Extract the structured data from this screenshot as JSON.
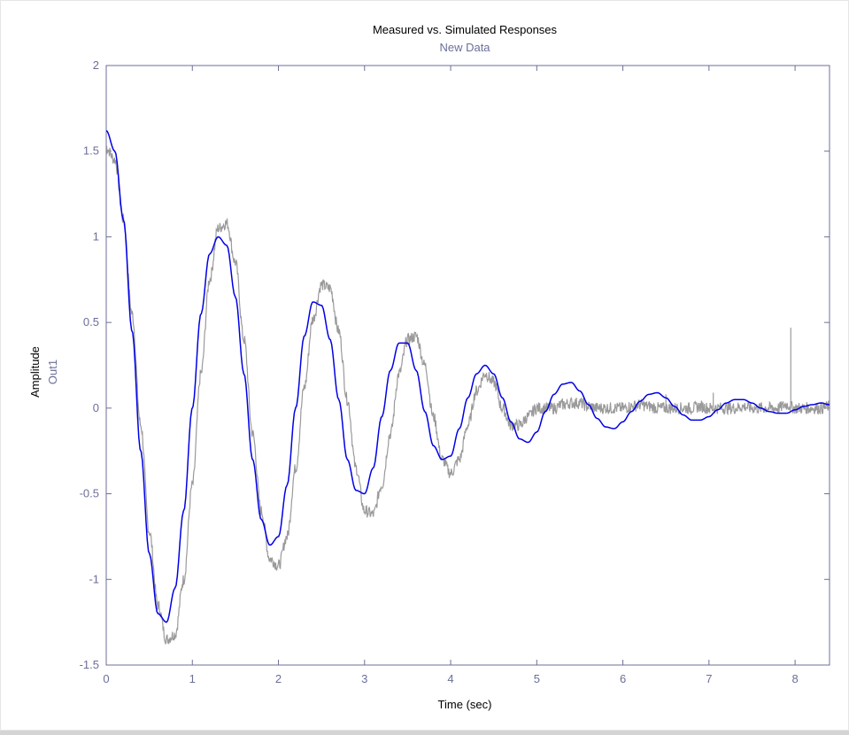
{
  "chart_data": {
    "type": "line",
    "title": "Measured vs. Simulated Responses",
    "subtitle": "New Data",
    "xlabel": "Time (sec)",
    "ylabel": "Amplitude",
    "ylabel_sub": "Out1",
    "xlim": [
      0,
      8.4
    ],
    "ylim": [
      -1.5,
      2
    ],
    "xticks": [
      0,
      1,
      2,
      3,
      4,
      5,
      6,
      7,
      8
    ],
    "xtick_labels": [
      "0",
      "1",
      "2",
      "3",
      "4",
      "5",
      "6",
      "7",
      "8"
    ],
    "yticks": [
      -1.5,
      -1,
      -0.5,
      0,
      0.5,
      1,
      1.5,
      2
    ],
    "ytick_labels": [
      "-1.5",
      "-1",
      "-0.5",
      "0",
      "0.5",
      "1",
      "1.5",
      "2"
    ],
    "grid": false,
    "colors": {
      "measured": "#9a9a9a",
      "simulated": "#0000e6",
      "axis": "#6b6f99",
      "title": "#000000",
      "subtitle": "#6b6f99"
    },
    "series": [
      {
        "values_x": [
          0,
          0.1,
          0.2,
          0.3,
          0.4,
          0.5,
          0.6,
          0.7,
          0.8,
          0.9,
          1.0,
          1.1,
          1.2,
          1.3,
          1.4,
          1.5,
          1.6,
          1.7,
          1.8,
          1.9,
          2.0,
          2.1,
          2.2,
          2.3,
          2.4,
          2.5,
          2.6,
          2.7,
          2.8,
          2.9,
          3.0,
          3.1,
          3.2,
          3.3,
          3.4,
          3.5,
          3.6,
          3.7,
          3.8,
          3.9,
          4.0,
          4.1,
          4.2,
          4.3,
          4.4,
          4.5,
          4.6,
          4.7,
          4.8,
          4.9,
          5.0,
          5.1,
          5.2,
          5.3,
          5.4,
          5.5,
          5.6,
          5.7,
          5.8,
          5.9,
          6.0,
          6.1,
          6.2,
          6.3,
          6.4,
          6.5,
          6.6,
          6.7,
          6.8,
          6.9,
          7.0,
          7.1,
          7.2,
          7.3,
          7.4,
          7.5,
          7.6,
          7.7,
          7.8,
          7.9,
          8.0,
          8.1,
          8.2,
          8.3,
          8.4
        ],
        "values": [
          1.52,
          1.45,
          1.1,
          0.55,
          -0.1,
          -0.72,
          -1.15,
          -1.35,
          -1.32,
          -1.0,
          -0.45,
          0.2,
          0.75,
          1.05,
          1.08,
          0.85,
          0.4,
          -0.15,
          -0.6,
          -0.88,
          -0.92,
          -0.75,
          -0.35,
          0.12,
          0.52,
          0.72,
          0.7,
          0.45,
          0.05,
          -0.35,
          -0.6,
          -0.62,
          -0.45,
          -0.15,
          0.2,
          0.4,
          0.42,
          0.25,
          -0.05,
          -0.3,
          -0.38,
          -0.3,
          -0.1,
          0.1,
          0.2,
          0.15,
          0.0,
          -0.1,
          -0.1,
          -0.05,
          0.0,
          0.0,
          0.0,
          0.02,
          0.03,
          0.03,
          0.01,
          0.0,
          0.0,
          0.0,
          0.0,
          0.01,
          0.02,
          0.01,
          0.0,
          0.0,
          0.0,
          0.0,
          0.0,
          0.01,
          0.0,
          0.0,
          0.0,
          0.0,
          0.01,
          0.0,
          0.0,
          0.0,
          0.0,
          0.02,
          0.0,
          0.0,
          0.0,
          0.0,
          0.01
        ]
      },
      {
        "values_x": [
          0,
          0.1,
          0.2,
          0.3,
          0.4,
          0.5,
          0.6,
          0.7,
          0.8,
          0.9,
          1.0,
          1.1,
          1.2,
          1.3,
          1.4,
          1.5,
          1.6,
          1.7,
          1.8,
          1.9,
          2.0,
          2.1,
          2.2,
          2.3,
          2.4,
          2.5,
          2.6,
          2.7,
          2.8,
          2.9,
          3.0,
          3.1,
          3.2,
          3.3,
          3.4,
          3.5,
          3.6,
          3.7,
          3.8,
          3.9,
          4.0,
          4.1,
          4.2,
          4.3,
          4.4,
          4.5,
          4.6,
          4.7,
          4.8,
          4.9,
          5.0,
          5.1,
          5.2,
          5.3,
          5.4,
          5.5,
          5.6,
          5.7,
          5.8,
          5.9,
          6.0,
          6.1,
          6.2,
          6.3,
          6.4,
          6.5,
          6.6,
          6.7,
          6.8,
          6.9,
          7.0,
          7.1,
          7.2,
          7.3,
          7.4,
          7.5,
          7.6,
          7.7,
          7.8,
          7.9,
          8.0,
          8.1,
          8.2,
          8.3,
          8.4
        ],
        "values": [
          1.62,
          1.5,
          1.1,
          0.45,
          -0.25,
          -0.85,
          -1.2,
          -1.25,
          -1.05,
          -0.6,
          0.0,
          0.55,
          0.9,
          1.0,
          0.95,
          0.65,
          0.2,
          -0.3,
          -0.65,
          -0.8,
          -0.75,
          -0.45,
          0.0,
          0.42,
          0.62,
          0.6,
          0.4,
          0.05,
          -0.3,
          -0.48,
          -0.5,
          -0.35,
          -0.05,
          0.22,
          0.38,
          0.38,
          0.22,
          -0.02,
          -0.22,
          -0.3,
          -0.28,
          -0.12,
          0.06,
          0.2,
          0.25,
          0.2,
          0.06,
          -0.08,
          -0.18,
          -0.2,
          -0.14,
          -0.02,
          0.08,
          0.14,
          0.15,
          0.1,
          0.02,
          -0.06,
          -0.11,
          -0.12,
          -0.08,
          -0.02,
          0.04,
          0.08,
          0.09,
          0.06,
          0.01,
          -0.04,
          -0.07,
          -0.07,
          -0.05,
          -0.01,
          0.03,
          0.05,
          0.05,
          0.03,
          0.0,
          -0.02,
          -0.03,
          -0.03,
          -0.01,
          0.01,
          0.02,
          0.03,
          0.02
        ]
      }
    ],
    "spikes": [
      {
        "x": 3.52,
        "y": 0.0
      },
      {
        "x": 7.95,
        "y": 0.47
      },
      {
        "x": 6.5,
        "y": 0.08
      },
      {
        "x": 7.05,
        "y": 0.09
      }
    ]
  }
}
